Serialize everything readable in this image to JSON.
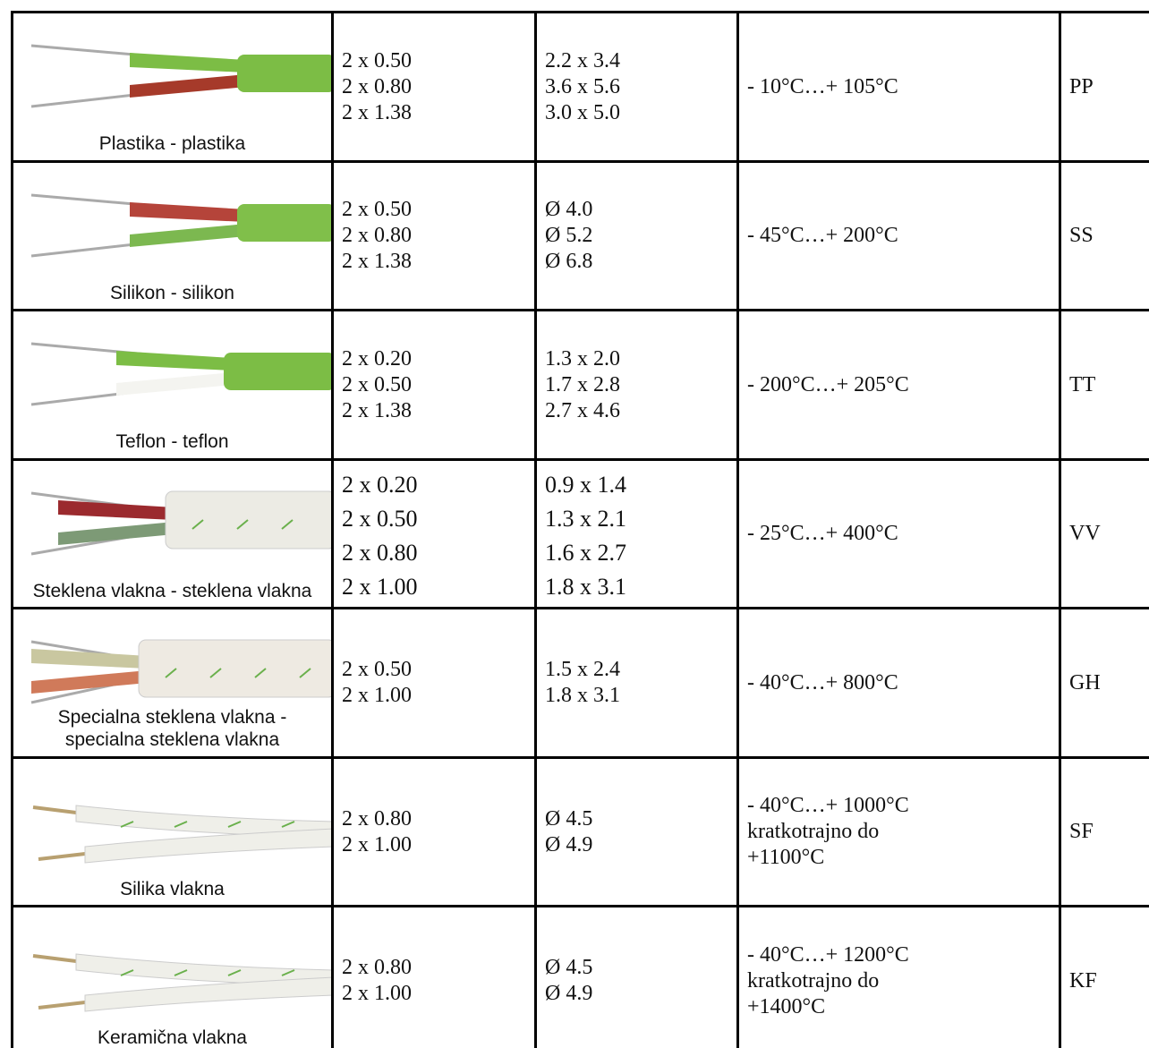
{
  "table": {
    "rows": [
      {
        "label": [
          "Plastika - plastika"
        ],
        "cores": [
          "2 x 0.50",
          "2 x 0.80",
          "2 x 1.38"
        ],
        "dimensions": [
          "2.2 x 3.4",
          "3.6 x 5.6",
          "3.0 x 5.0"
        ],
        "temperature": [
          "- 10°C…+ 105°C"
        ],
        "code": "PP"
      },
      {
        "label": [
          "Silikon - silikon"
        ],
        "cores": [
          "2 x 0.50",
          "2 x 0.80",
          "2 x 1.38"
        ],
        "dimensions": [
          "Ø 4.0",
          "Ø 5.2",
          "Ø 6.8"
        ],
        "temperature": [
          "- 45°C…+ 200°C"
        ],
        "code": "SS"
      },
      {
        "label": [
          "Teflon - teflon"
        ],
        "cores": [
          "2 x 0.20",
          "2 x 0.50",
          "2 x 1.38"
        ],
        "dimensions": [
          "1.3 x 2.0",
          "1.7 x 2.8",
          "2.7 x 4.6"
        ],
        "temperature": [
          "- 200°C…+ 205°C"
        ],
        "code": "TT"
      },
      {
        "label": [
          "Steklena vlakna - steklena vlakna"
        ],
        "cores": [
          "2 x 0.20",
          "2 x 0.50",
          "2 x 0.80",
          "2 x 1.00"
        ],
        "dimensions": [
          "0.9 x 1.4",
          "1.3 x 2.1",
          "1.6 x 2.7",
          "1.8 x 3.1"
        ],
        "temperature": [
          "- 25°C…+ 400°C"
        ],
        "code": "VV"
      },
      {
        "label": [
          "Specialna steklena vlakna -",
          "specialna steklena vlakna"
        ],
        "cores": [
          "2 x 0.50",
          "2 x 1.00"
        ],
        "dimensions": [
          "1.5 x 2.4",
          "1.8 x 3.1"
        ],
        "temperature": [
          "- 40°C…+ 800°C"
        ],
        "code": "GH"
      },
      {
        "label": [
          "Silika vlakna"
        ],
        "cores": [
          "2 x 0.80",
          "2 x 1.00"
        ],
        "dimensions": [
          "Ø 4.5",
          "Ø 4.9"
        ],
        "temperature": [
          "- 40°C…+ 1000°C",
          "kratkotrajno do +1100°C"
        ],
        "code": "SF"
      },
      {
        "label": [
          "Keramična vlakna"
        ],
        "cores": [
          "2 x 0.80",
          "2 x 1.00"
        ],
        "dimensions": [
          "Ø 4.5",
          "Ø 4.9"
        ],
        "temperature": [
          "- 40°C…+ 1200°C",
          "kratkotrajno do +1400°C"
        ],
        "code": "KF"
      }
    ]
  }
}
